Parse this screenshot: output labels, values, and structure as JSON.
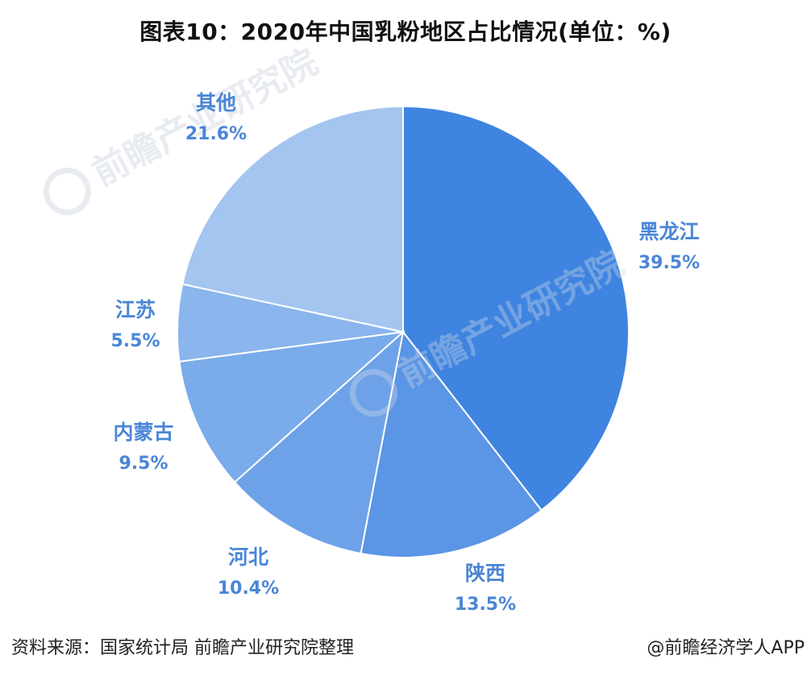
{
  "title": "图表10：2020年中国乳粉地区占比情况(单位：%)",
  "chart_data": {
    "type": "pie",
    "title": "图表10：2020年中国乳粉地区占比情况(单位：%)",
    "unit": "%",
    "slices": [
      {
        "label": "黑龙江",
        "value": 39.5,
        "value_label": "39.5%",
        "color": "#3f84e0"
      },
      {
        "label": "陕西",
        "value": 13.5,
        "value_label": "13.5%",
        "color": "#5b95e5"
      },
      {
        "label": "河北",
        "value": 10.4,
        "value_label": "10.4%",
        "color": "#6ea2e8"
      },
      {
        "label": "内蒙古",
        "value": 9.5,
        "value_label": "9.5%",
        "color": "#7aabea"
      },
      {
        "label": "江苏",
        "value": 5.5,
        "value_label": "5.5%",
        "color": "#8ab5ed"
      },
      {
        "label": "其他",
        "value": 21.6,
        "value_label": "21.6%",
        "color": "#a3c5f0"
      }
    ],
    "start": "12 o'clock",
    "direction": "clockwise"
  },
  "watermark": {
    "text": "前瞻产业研究院"
  },
  "footer": {
    "source": "资料来源：国家统计局 前瞻产业研究院整理",
    "credit": "@前瞻经济学人APP"
  }
}
